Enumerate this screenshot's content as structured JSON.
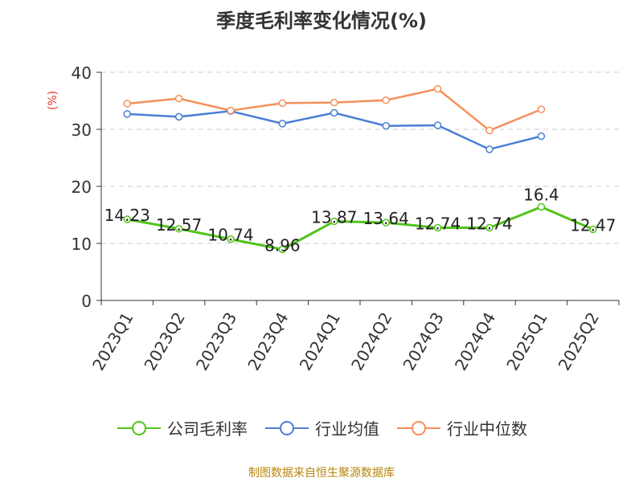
{
  "chart_data": {
    "type": "line",
    "title": "季度毛利率变化情况(%)",
    "ylabel": "(%)",
    "ylim": [
      0,
      40
    ],
    "yticks": [
      0,
      10,
      20,
      30,
      40
    ],
    "grid": true,
    "legend_position": "bottom",
    "categories": [
      "2023Q1",
      "2023Q2",
      "2023Q3",
      "2023Q4",
      "2024Q1",
      "2024Q2",
      "2024Q3",
      "2024Q4",
      "2025Q1",
      "2025Q2"
    ],
    "series": [
      {
        "name": "公司毛利率",
        "color": "#52c41a",
        "values": [
          14.23,
          12.57,
          10.74,
          8.96,
          13.87,
          13.64,
          12.74,
          12.74,
          16.4,
          12.47
        ],
        "labels": [
          "14.23",
          "12.57",
          "10.74",
          "8.96",
          "13.87",
          "13.64",
          "12.74",
          "12.74",
          "16.4",
          "12.47"
        ]
      },
      {
        "name": "行业均值",
        "color": "#4a7fd4",
        "values": [
          32.7,
          32.2,
          33.2,
          31.0,
          32.9,
          30.6,
          30.7,
          26.5,
          28.8,
          null
        ]
      },
      {
        "name": "行业中位数",
        "color": "#f4905a",
        "values": [
          34.5,
          35.4,
          33.3,
          34.6,
          34.7,
          35.1,
          37.1,
          29.8,
          33.5,
          null
        ]
      }
    ]
  },
  "source": "制图数据来自恒生聚源数据库"
}
